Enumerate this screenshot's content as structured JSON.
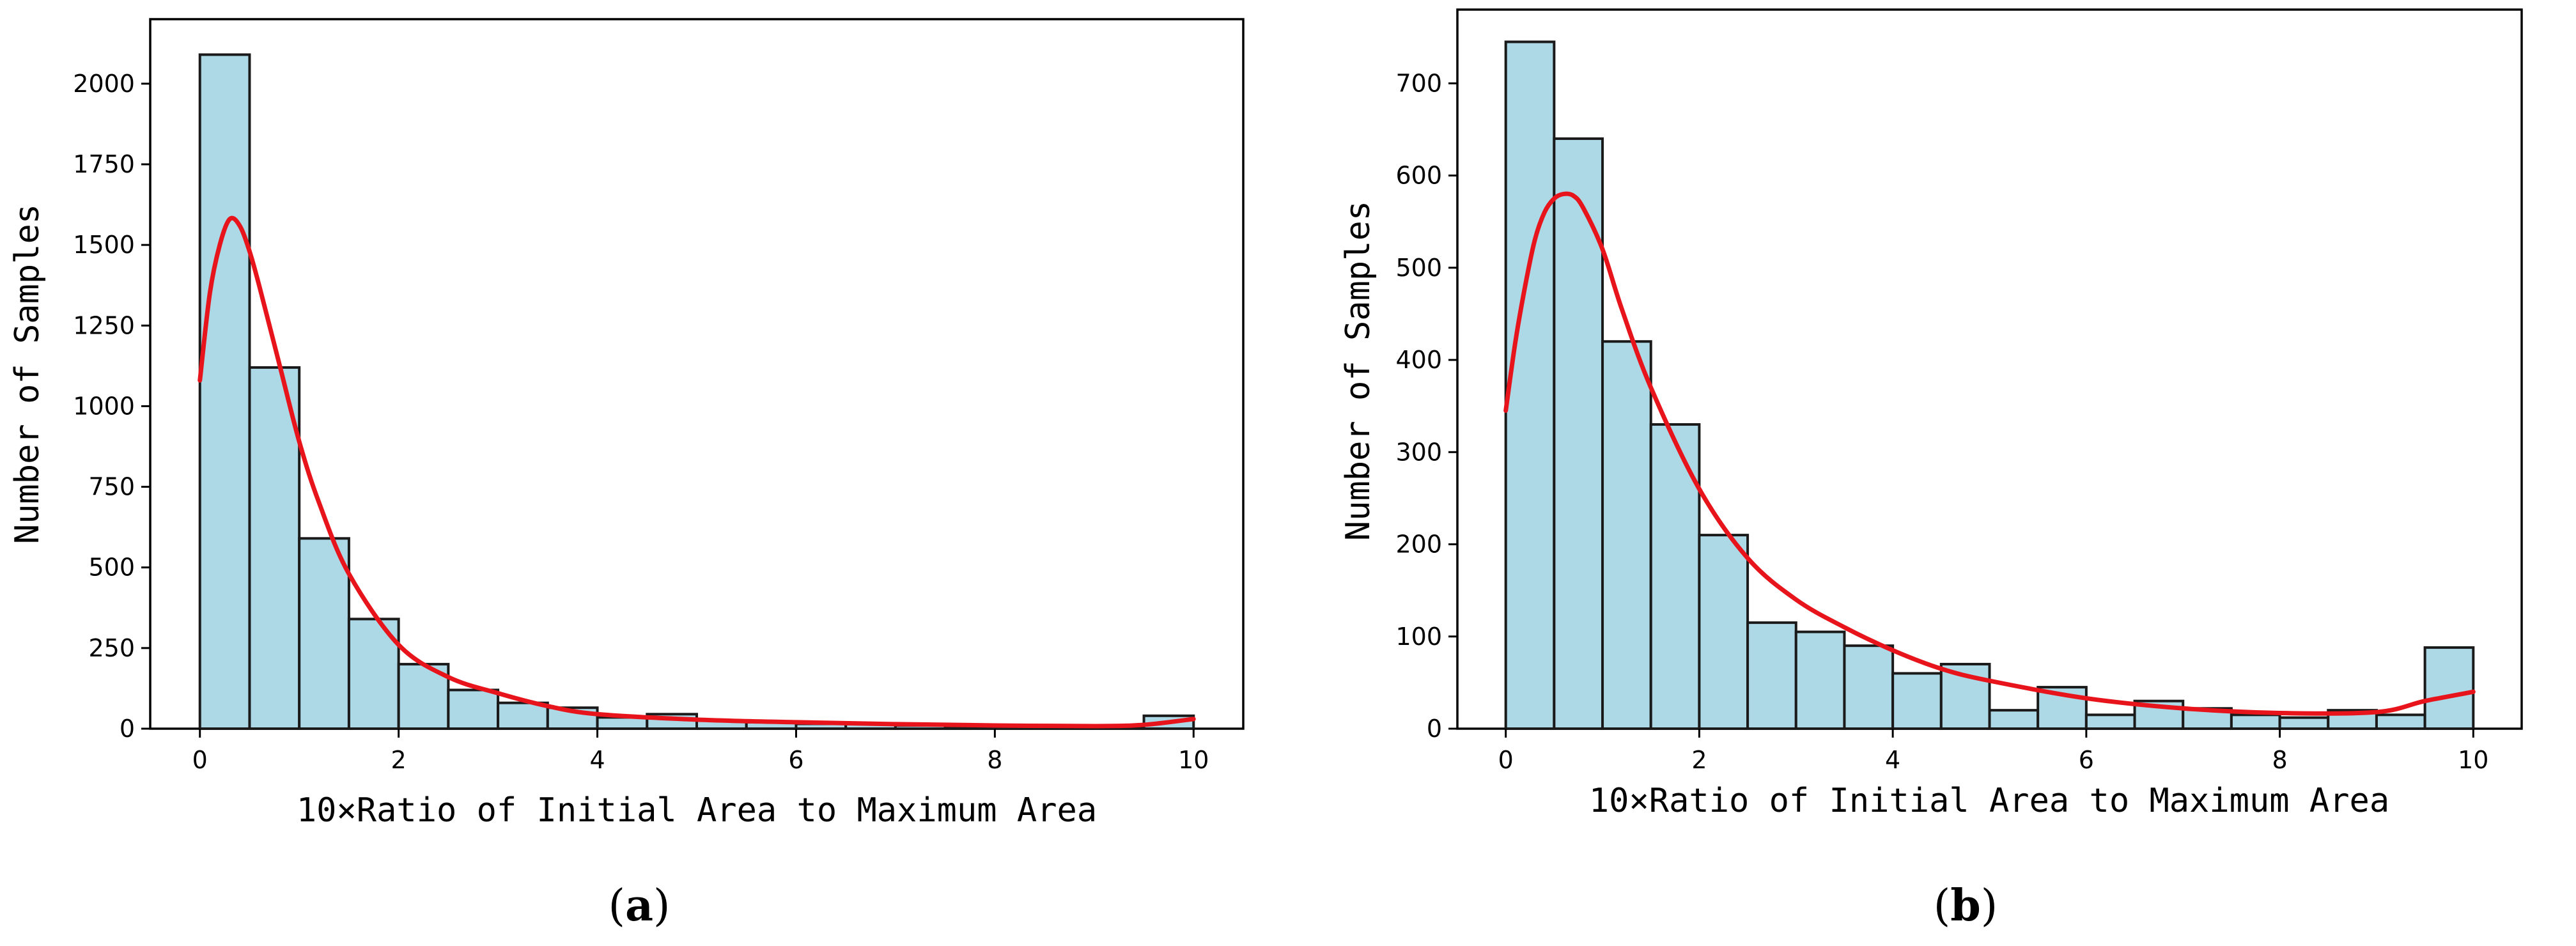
{
  "colors": {
    "bar_fill": "#add8e6",
    "bar_edge": "#1a1a1a",
    "kde_line": "#e8141c"
  },
  "chart_data": [
    {
      "type": "bar",
      "panel_label": {
        "open": "(",
        "letter": "a",
        "close": ")"
      },
      "xlabel": "10×Ratio of Initial Area to Maximum Area",
      "ylabel": "Number of Samples",
      "xlim": [
        -0.5,
        10.5
      ],
      "ylim": [
        0,
        2200
      ],
      "xticks": [
        0,
        2,
        4,
        6,
        8,
        10
      ],
      "xtick_labels": [
        "0",
        "2",
        "4",
        "6",
        "8",
        "10"
      ],
      "yticks": [
        0,
        250,
        500,
        750,
        1000,
        1250,
        1500,
        1750,
        2000
      ],
      "ytick_labels": [
        "0",
        "250",
        "500",
        "750",
        "1000",
        "1250",
        "1500",
        "1750",
        "2000"
      ],
      "bin_edges": [
        0,
        0.5,
        1,
        1.5,
        2,
        2.5,
        3,
        3.5,
        4,
        4.5,
        5,
        5.5,
        6,
        6.5,
        7,
        7.5,
        8,
        8.5,
        9,
        9.5,
        10
      ],
      "values": [
        2090,
        1120,
        590,
        340,
        200,
        120,
        80,
        65,
        35,
        45,
        25,
        20,
        15,
        15,
        10,
        8,
        8,
        5,
        5,
        40
      ],
      "kde": {
        "x": [
          0,
          0.1,
          0.2,
          0.3,
          0.4,
          0.5,
          0.6,
          0.8,
          1.0,
          1.2,
          1.5,
          2.0,
          2.5,
          3.0,
          3.5,
          4.0,
          5.0,
          6.0,
          7.0,
          8.0,
          9.0,
          9.5,
          10
        ],
        "y": [
          1080,
          1350,
          1500,
          1580,
          1560,
          1480,
          1370,
          1130,
          890,
          700,
          480,
          260,
          160,
          110,
          70,
          45,
          28,
          20,
          14,
          10,
          8,
          12,
          30
        ]
      },
      "grid": false
    },
    {
      "type": "bar",
      "panel_label": {
        "open": "(",
        "letter": "b",
        "close": ")"
      },
      "xlabel": "10×Ratio of Initial Area to Maximum Area",
      "ylabel": "Number of Samples",
      "xlim": [
        -0.5,
        10.5
      ],
      "ylim": [
        0,
        780
      ],
      "xticks": [
        0,
        2,
        4,
        6,
        8,
        10
      ],
      "xtick_labels": [
        "0",
        "2",
        "4",
        "6",
        "8",
        "10"
      ],
      "yticks": [
        0,
        100,
        200,
        300,
        400,
        500,
        600,
        700
      ],
      "ytick_labels": [
        "0",
        "100",
        "200",
        "300",
        "400",
        "500",
        "600",
        "700"
      ],
      "bin_edges": [
        0,
        0.5,
        1,
        1.5,
        2,
        2.5,
        3,
        3.5,
        4,
        4.5,
        5,
        5.5,
        6,
        6.5,
        7,
        7.5,
        8,
        8.5,
        9,
        9.5,
        10
      ],
      "values": [
        745,
        640,
        420,
        330,
        210,
        115,
        105,
        90,
        60,
        70,
        20,
        45,
        15,
        30,
        22,
        15,
        12,
        20,
        15,
        88
      ],
      "kde": {
        "x": [
          0,
          0.1,
          0.2,
          0.3,
          0.4,
          0.5,
          0.6,
          0.7,
          0.8,
          1.0,
          1.2,
          1.5,
          2.0,
          2.5,
          3.0,
          3.5,
          4.0,
          4.5,
          5.0,
          6.0,
          7.0,
          8.0,
          9.0,
          9.5,
          10
        ],
        "y": [
          345,
          420,
          480,
          530,
          560,
          575,
          580,
          578,
          565,
          520,
          455,
          370,
          260,
          185,
          140,
          110,
          85,
          65,
          52,
          33,
          22,
          17,
          18,
          30,
          40
        ]
      },
      "grid": false
    }
  ]
}
